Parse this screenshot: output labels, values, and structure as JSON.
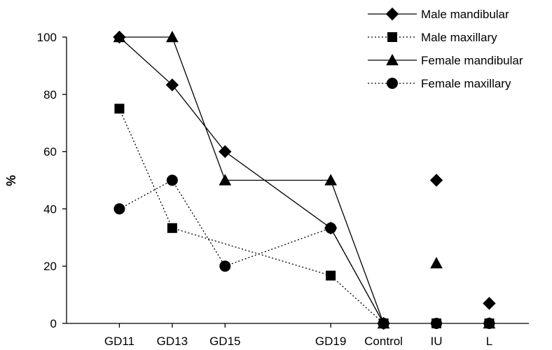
{
  "chart_data": {
    "type": "line",
    "title": "",
    "xlabel": "",
    "ylabel": "%",
    "ylim": [
      0,
      100
    ],
    "yticks": [
      0,
      20,
      40,
      60,
      80,
      100
    ],
    "categories": [
      "GD11",
      "GD13",
      "GD15",
      "GD19",
      "Control",
      "IU",
      "L"
    ],
    "x": [
      11,
      13,
      15,
      19,
      21,
      23,
      25
    ],
    "grid": false,
    "legend_position": "top-right",
    "series": [
      {
        "name": "Male mandibular",
        "marker": "diamond",
        "line": "solid",
        "color": "#000000",
        "values": [
          100,
          83.3,
          60,
          33.3,
          0,
          50,
          7
        ],
        "connected_through": 4
      },
      {
        "name": "Male maxillary",
        "marker": "square",
        "line": "dotted",
        "color": "#000000",
        "values": [
          75,
          33.3,
          null,
          16.7,
          0,
          0,
          0
        ],
        "connected_through": 4
      },
      {
        "name": "Female mandibular",
        "marker": "triangle",
        "line": "solid",
        "color": "#000000",
        "values": [
          100,
          100,
          50,
          50,
          0,
          21,
          0
        ],
        "connected_through": 4
      },
      {
        "name": "Female maxillary",
        "marker": "circle",
        "line": "dotted",
        "color": "#000000",
        "values": [
          40,
          50,
          20,
          33.3,
          0,
          0,
          0
        ],
        "connected_through": 4
      }
    ]
  }
}
